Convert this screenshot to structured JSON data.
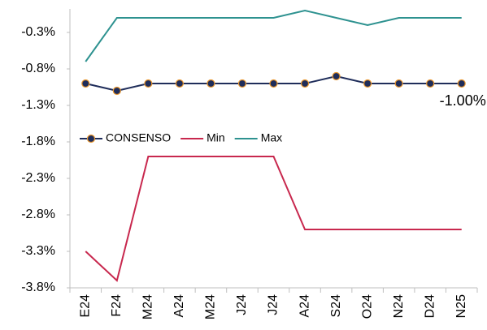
{
  "chart_data": {
    "type": "line",
    "categories": [
      "E24",
      "F24",
      "M24",
      "A24",
      "M24",
      "J24",
      "J24",
      "A24",
      "S24",
      "O24",
      "N24",
      "D24",
      "N25"
    ],
    "series": [
      {
        "name": "CONSENSO",
        "color": "#1f2d5a",
        "marker_edge": "#e8962e",
        "values": [
          -1.0,
          -1.1,
          -1.0,
          -1.0,
          -1.0,
          -1.0,
          -1.0,
          -1.0,
          -0.9,
          -1.0,
          -1.0,
          -1.0,
          -1.0
        ],
        "value_labels": [
          null,
          null,
          null,
          null,
          null,
          null,
          null,
          null,
          null,
          null,
          null,
          null,
          "-1.00%"
        ]
      },
      {
        "name": "Min",
        "color": "#c8284e",
        "values": [
          -3.3,
          -3.7,
          -2.0,
          -2.0,
          -2.0,
          -2.0,
          -2.0,
          -3.0,
          -3.0,
          -3.0,
          -3.0,
          -3.0,
          -3.0
        ]
      },
      {
        "name": "Max",
        "color": "#2e9290",
        "values": [
          -0.7,
          -0.1,
          -0.1,
          -0.1,
          -0.1,
          -0.1,
          -0.1,
          0.0,
          -0.1,
          -0.2,
          -0.1,
          -0.1,
          -0.1
        ]
      }
    ],
    "ylim": [
      -3.8,
      0.0
    ],
    "yticks": [
      {
        "value": -0.3,
        "label": "-0.3%"
      },
      {
        "value": -0.8,
        "label": "-0.8%"
      },
      {
        "value": -1.3,
        "label": "-1.3%"
      },
      {
        "value": -1.8,
        "label": "-1.8%"
      },
      {
        "value": -2.3,
        "label": "-2.3%"
      },
      {
        "value": -2.8,
        "label": "-2.8%"
      },
      {
        "value": -3.3,
        "label": "-3.3%"
      },
      {
        "value": -3.8,
        "label": "-3.8%"
      }
    ],
    "grid": false,
    "legend": "center-left"
  }
}
